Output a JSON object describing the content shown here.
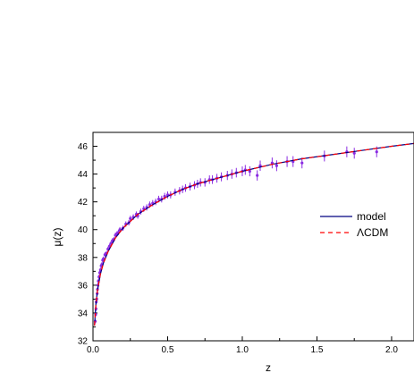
{
  "chart_data": {
    "type": "scatter",
    "xlabel": "z",
    "ylabel": "μ(z)",
    "xlim": [
      0.0,
      2.15
    ],
    "ylim": [
      32,
      47
    ],
    "xticks": [
      0.0,
      0.5,
      1.0,
      1.5,
      2.0
    ],
    "xtick_labels": [
      "0.0",
      "0.5",
      "1.0",
      "1.5",
      "2.0"
    ],
    "yticks": [
      32,
      34,
      36,
      38,
      40,
      42,
      44,
      46
    ],
    "ytick_labels": [
      "32",
      "34",
      "36",
      "38",
      "40",
      "42",
      "44",
      "46"
    ],
    "legend_position": "right-middle",
    "series": [
      {
        "name": "model",
        "kind": "line",
        "style": "solid",
        "color": "#000080",
        "x": [
          0.01,
          0.02,
          0.03,
          0.05,
          0.07,
          0.1,
          0.15,
          0.2,
          0.3,
          0.4,
          0.5,
          0.6,
          0.7,
          0.8,
          0.9,
          1.0,
          1.2,
          1.4,
          1.6,
          1.8,
          2.0,
          2.15
        ],
        "y": [
          33.1,
          34.7,
          35.6,
          36.8,
          37.6,
          38.4,
          39.4,
          40.1,
          41.1,
          41.8,
          42.4,
          42.9,
          43.3,
          43.6,
          43.9,
          44.2,
          44.7,
          45.1,
          45.4,
          45.7,
          46.0,
          46.2
        ]
      },
      {
        "name": "ΛCDM",
        "kind": "line",
        "style": "dashed",
        "color": "#ff0000",
        "x": [
          0.01,
          0.02,
          0.03,
          0.05,
          0.07,
          0.1,
          0.15,
          0.2,
          0.3,
          0.4,
          0.5,
          0.6,
          0.7,
          0.8,
          0.9,
          1.0,
          1.2,
          1.4,
          1.6,
          1.8,
          2.0,
          2.15
        ],
        "y": [
          33.1,
          34.7,
          35.6,
          36.8,
          37.6,
          38.4,
          39.4,
          40.1,
          41.1,
          41.8,
          42.4,
          42.9,
          43.3,
          43.6,
          43.9,
          44.2,
          44.7,
          45.1,
          45.4,
          45.7,
          46.0,
          46.2
        ]
      },
      {
        "name": "",
        "kind": "points",
        "color": "#8a2be2",
        "points": [
          [
            0.015,
            33.4
          ],
          [
            0.018,
            33.9
          ],
          [
            0.02,
            34.3
          ],
          [
            0.022,
            34.8
          ],
          [
            0.025,
            35.0
          ],
          [
            0.028,
            35.4
          ],
          [
            0.03,
            35.7
          ],
          [
            0.033,
            36.0
          ],
          [
            0.036,
            36.3
          ],
          [
            0.04,
            36.6
          ],
          [
            0.045,
            36.9
          ],
          [
            0.05,
            37.1
          ],
          [
            0.055,
            37.4
          ],
          [
            0.06,
            37.5
          ],
          [
            0.065,
            37.8
          ],
          [
            0.07,
            37.9
          ],
          [
            0.08,
            38.2
          ],
          [
            0.09,
            38.3
          ],
          [
            0.1,
            38.6
          ],
          [
            0.11,
            38.8
          ],
          [
            0.12,
            39.0
          ],
          [
            0.13,
            39.2
          ],
          [
            0.14,
            39.3
          ],
          [
            0.15,
            39.6
          ],
          [
            0.16,
            39.7
          ],
          [
            0.17,
            39.8
          ],
          [
            0.18,
            40.0
          ],
          [
            0.2,
            40.1
          ],
          [
            0.22,
            40.4
          ],
          [
            0.24,
            40.5
          ],
          [
            0.25,
            40.8
          ],
          [
            0.27,
            40.9
          ],
          [
            0.29,
            41.1
          ],
          [
            0.3,
            41.0
          ],
          [
            0.32,
            41.3
          ],
          [
            0.34,
            41.5
          ],
          [
            0.36,
            41.6
          ],
          [
            0.38,
            41.8
          ],
          [
            0.4,
            41.9
          ],
          [
            0.42,
            42.0
          ],
          [
            0.44,
            42.2
          ],
          [
            0.46,
            42.2
          ],
          [
            0.48,
            42.4
          ],
          [
            0.5,
            42.5
          ],
          [
            0.52,
            42.5
          ],
          [
            0.55,
            42.7
          ],
          [
            0.58,
            42.8
          ],
          [
            0.6,
            42.9
          ],
          [
            0.62,
            43.0
          ],
          [
            0.65,
            43.1
          ],
          [
            0.68,
            43.2
          ],
          [
            0.7,
            43.3
          ],
          [
            0.72,
            43.4
          ],
          [
            0.75,
            43.4
          ],
          [
            0.78,
            43.6
          ],
          [
            0.8,
            43.6
          ],
          [
            0.83,
            43.7
          ],
          [
            0.86,
            43.8
          ],
          [
            0.9,
            43.9
          ],
          [
            0.93,
            44.0
          ],
          [
            0.96,
            44.1
          ],
          [
            1.0,
            44.2
          ],
          [
            1.02,
            44.3
          ],
          [
            1.05,
            44.2
          ],
          [
            1.1,
            43.9
          ],
          [
            1.12,
            44.6
          ],
          [
            1.2,
            44.8
          ],
          [
            1.23,
            44.6
          ],
          [
            1.3,
            44.9
          ],
          [
            1.34,
            44.9
          ],
          [
            1.4,
            44.8
          ],
          [
            1.55,
            45.3
          ],
          [
            1.7,
            45.6
          ],
          [
            1.75,
            45.5
          ],
          [
            1.9,
            45.6
          ]
        ]
      }
    ]
  }
}
